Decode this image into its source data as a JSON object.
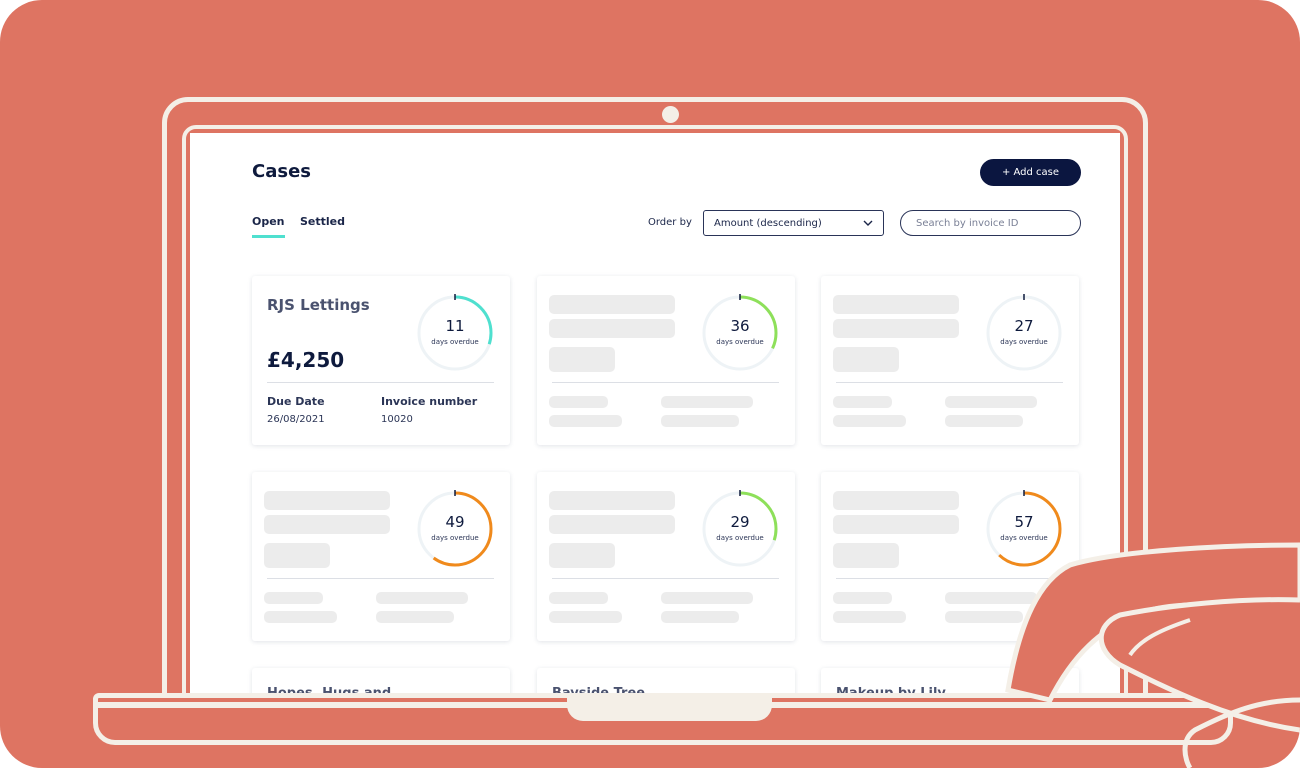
{
  "header": {
    "title": "Cases",
    "add_button": "+ Add case"
  },
  "tabs": [
    {
      "label": "Open",
      "active": true
    },
    {
      "label": "Settled",
      "active": false
    }
  ],
  "order_by": {
    "label": "Order by",
    "selected": "Amount (descending)"
  },
  "search": {
    "placeholder": "Search by invoice ID"
  },
  "overdue_label": "days overdue",
  "cards": [
    {
      "name": "RJS Lettings",
      "amount": "£4,250",
      "due_label": "Due Date",
      "due": "26/08/2021",
      "invoice_label": "Invoice number",
      "invoice": "10020",
      "days": "11",
      "progress": 0.3,
      "color": "#4fe0cf",
      "skeleton": false
    },
    {
      "days": "36",
      "progress": 0.32,
      "color": "#8ee05a",
      "skeleton": true
    },
    {
      "days": "27",
      "progress": 0.0,
      "color": "#cfd6dd",
      "skeleton": true
    },
    {
      "days": "49",
      "progress": 0.6,
      "color": "#f08a1c",
      "skeleton": true
    },
    {
      "days": "29",
      "progress": 0.3,
      "color": "#8ee05a",
      "skeleton": true
    },
    {
      "days": "57",
      "progress": 0.62,
      "color": "#f08a1c",
      "skeleton": true
    }
  ],
  "partial_cards": [
    {
      "name": "Hopes, Hugs and"
    },
    {
      "name": "Bayside Tree"
    },
    {
      "name": "Makeup by Lily"
    }
  ],
  "colors": {
    "background": "#de7462",
    "outline": "#f4efe7",
    "primary": "#0b1640",
    "accent": "#4fe0cf"
  }
}
